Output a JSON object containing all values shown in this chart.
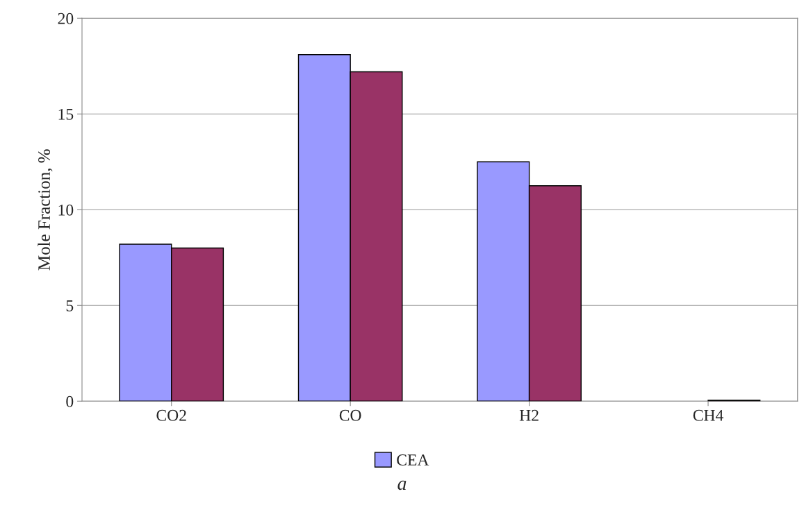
{
  "chart_data": {
    "type": "bar",
    "ylabel": "Mole Fraction, %",
    "categories": [
      "CO2",
      "CO",
      "H2",
      "CH4"
    ],
    "series": [
      {
        "name": "CEA",
        "color": "#9999ff",
        "values": [
          8.2,
          18.1,
          12.5,
          0
        ]
      },
      {
        "color": "#993366",
        "values": [
          8.0,
          17.2,
          11.25,
          0.05
        ]
      }
    ],
    "ylim": [
      0,
      20
    ],
    "yticks": [
      0,
      5,
      10,
      15,
      20
    ],
    "grid": "y",
    "legend": "bottom",
    "annotations": [
      "a"
    ]
  }
}
